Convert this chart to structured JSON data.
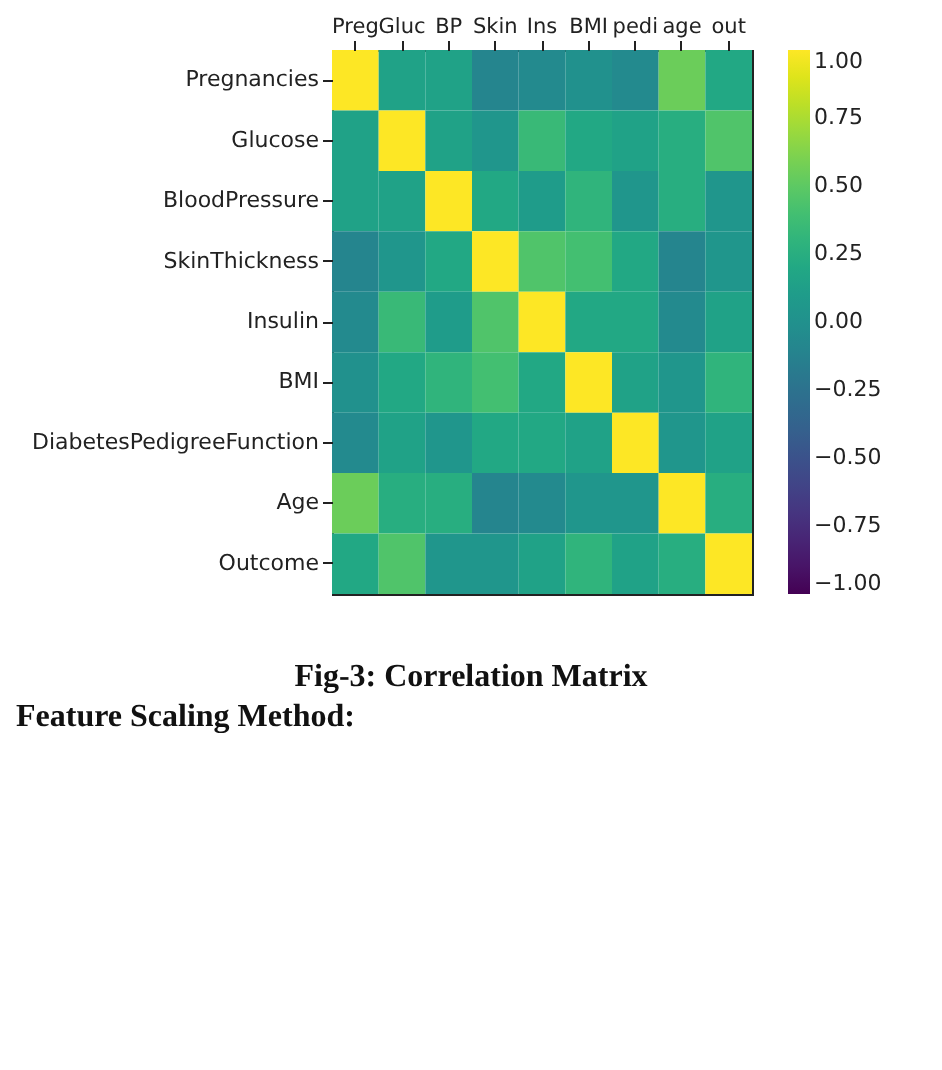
{
  "chart_data": {
    "type": "heatmap",
    "categories": [
      "Preg",
      "Gluc",
      "BP",
      "Skin",
      "Ins",
      "BMI",
      "pedi",
      "age",
      "out"
    ],
    "y_categories": [
      "Pregnancies",
      "Glucose",
      "BloodPressure",
      "SkinThickness",
      "Insulin",
      "BMI",
      "DiabetesPedigreeFunction",
      "Age",
      "Outcome"
    ],
    "cells": [
      [
        1,
        0.15,
        0.15,
        -0.1,
        -0.05,
        0,
        -0.05,
        0.55,
        0.2
      ],
      [
        0.15,
        1,
        0.15,
        0.05,
        0.35,
        0.2,
        0.15,
        0.25,
        0.45
      ],
      [
        0.15,
        0.15,
        1,
        0.2,
        0.1,
        0.3,
        0.05,
        0.25,
        0.05
      ],
      [
        -0.1,
        0.05,
        0.2,
        1,
        0.45,
        0.4,
        0.2,
        -0.1,
        0.05
      ],
      [
        -0.05,
        0.35,
        0.1,
        0.45,
        1,
        0.2,
        0.2,
        -0.05,
        0.15
      ],
      [
        0,
        0.2,
        0.3,
        0.4,
        0.2,
        1,
        0.15,
        0.05,
        0.3
      ],
      [
        -0.05,
        0.15,
        0.05,
        0.2,
        0.2,
        0.15,
        1,
        0.05,
        0.15
      ],
      [
        0.55,
        0.25,
        0.25,
        -0.1,
        -0.05,
        0.05,
        0.05,
        1,
        0.25
      ],
      [
        0.2,
        0.45,
        0.05,
        0.05,
        0.15,
        0.3,
        0.15,
        0.25,
        1
      ]
    ],
    "clim": [
      -1,
      1
    ],
    "cticks": [
      {
        "value": 1,
        "label": "1.00"
      },
      {
        "value": 0.75,
        "label": "0.75"
      },
      {
        "value": 0.5,
        "label": "0.50"
      },
      {
        "value": 0.25,
        "label": "0.25"
      },
      {
        "value": 0,
        "label": "0.00"
      },
      {
        "value": -0.25,
        "label": "−0.25"
      },
      {
        "value": -0.5,
        "label": "−0.50"
      },
      {
        "value": -0.75,
        "label": "−0.75"
      },
      {
        "value": -1,
        "label": "−1.00"
      }
    ],
    "annotations": [
      "Fig-3: Correlation Matrix",
      "Feature Scaling Method:"
    ]
  }
}
